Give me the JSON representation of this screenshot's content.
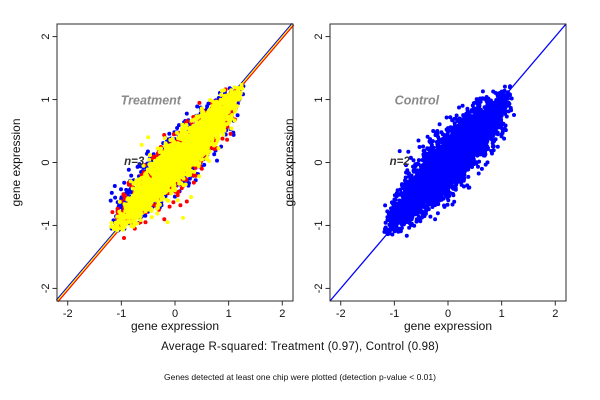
{
  "figure": {
    "background": "#ffffff",
    "caption_rsq": "Average R-squared: Treatment (0.97), Control (0.98)",
    "caption_note": "Genes detected at least one chip were plotted (detection p-value < 0.01)"
  },
  "chart_data": [
    {
      "id": "treatment",
      "type": "scatter",
      "panel_title": "Treatment",
      "n_label": "n=3",
      "n_chips": 3,
      "avg_r_squared": 0.97,
      "xlabel": "gene expression",
      "ylabel": "gene expression",
      "xlim": [
        -2.2,
        2.2
      ],
      "ylim": [
        -2.2,
        2.2
      ],
      "xticks": [
        -2,
        -1,
        0,
        1,
        2
      ],
      "yticks": [
        -2,
        -1,
        0,
        1,
        2
      ],
      "grid": false,
      "seed": 42,
      "panel_title_pos": [
        -0.45,
        0.92
      ],
      "n_label_pos": [
        -0.76,
        -0.04
      ],
      "identity_line": [
        {
          "name": "chip-1-line",
          "color": "#0000ff",
          "offset": -0.75
        },
        {
          "name": "chip-2-line",
          "color": "#ff0000",
          "offset": 0.75
        },
        {
          "name": "chip-3-line",
          "color": "#ffee00",
          "offset": 0
        }
      ],
      "series": [
        {
          "name": "chip-blue",
          "color": "#0000ff",
          "n": 1500,
          "t_range": [
            -1.15,
            1.25
          ],
          "half_width": 0.34,
          "skew": 0.04,
          "lobes": [
            {
              "n": 170,
              "t_range": [
                -0.92,
                0.08
              ],
              "base": 0.03,
              "sigma": 0.18,
              "side": 1
            },
            {
              "n": 45,
              "t_range": [
                -0.55,
                0.35
              ],
              "base": 0.04,
              "sigma": 0.12,
              "side": -1
            }
          ],
          "extra": [
            [
              -1.18,
              -1.05
            ],
            [
              1.02,
              1.18
            ],
            [
              0.52,
              0.07
            ],
            [
              -0.15,
              0.35
            ],
            [
              -0.43,
              -0.6
            ]
          ]
        },
        {
          "name": "chip-red",
          "color": "#ff0000",
          "n": 900,
          "t_range": [
            -1.13,
            1.22
          ],
          "half_width": 0.3,
          "skew": 0.04,
          "lobes": [],
          "extra": [
            [
              -0.95,
              -1.2
            ],
            [
              -0.75,
              -1.05
            ],
            [
              -0.55,
              -0.95
            ],
            [
              -0.3,
              -0.75
            ],
            [
              -0.1,
              -0.7
            ],
            [
              0.1,
              -0.68
            ],
            [
              0.22,
              -0.62
            ],
            [
              -0.2,
              -0.9
            ],
            [
              0.05,
              -0.52
            ],
            [
              0.35,
              -0.32
            ],
            [
              0.5,
              -0.1
            ],
            [
              0.45,
              0.05
            ],
            [
              0.6,
              0.3
            ],
            [
              1.25,
              1.2
            ],
            [
              -1.0,
              -0.62
            ],
            [
              -0.8,
              -0.38
            ],
            [
              0.15,
              0.5
            ],
            [
              0.55,
              0.75
            ],
            [
              0.42,
              0.6
            ]
          ]
        },
        {
          "name": "chip-yellow",
          "color": "#ffff00",
          "n": 2600,
          "t_range": [
            -1.15,
            1.25
          ],
          "half_width": 0.27,
          "skew": 0.04,
          "lobes": [],
          "extra": [
            [
              -0.33,
              -0.81
            ],
            [
              -0.14,
              -0.95
            ],
            [
              0.15,
              -0.88
            ],
            [
              0.3,
              -0.55
            ],
            [
              0.45,
              -0.22
            ],
            [
              -0.5,
              0.4
            ],
            [
              0.2,
              -0.35
            ],
            [
              1.22,
              1.18
            ],
            [
              0.05,
              -0.6
            ],
            [
              -0.62,
              0.28
            ]
          ]
        }
      ]
    },
    {
      "id": "control",
      "type": "scatter",
      "panel_title": "Control",
      "n_label": "n=2",
      "n_chips": 2,
      "avg_r_squared": 0.98,
      "xlabel": "gene expression",
      "ylabel": "gene expression",
      "xlim": [
        -2.2,
        2.2
      ],
      "ylim": [
        -2.2,
        2.2
      ],
      "xticks": [
        -2,
        -1,
        0,
        1,
        2
      ],
      "yticks": [
        -2,
        -1,
        0,
        1,
        2
      ],
      "grid": false,
      "seed": 7,
      "panel_title_pos": [
        -0.58,
        0.92
      ],
      "n_label_pos": [
        -0.9,
        -0.04
      ],
      "identity_line": [
        {
          "name": "chip-line",
          "color": "#0000ff",
          "offset": 0
        }
      ],
      "series": [
        {
          "name": "chips-blue",
          "color": "#0000ff",
          "n": 3800,
          "t_range": [
            -1.15,
            1.2
          ],
          "half_width": 0.36,
          "skew": 0.02,
          "lobes": [
            {
              "n": 70,
              "t_range": [
                -0.9,
                -0.05
              ],
              "base": 0.03,
              "sigma": 0.16,
              "side": 1
            }
          ],
          "extra": [
            [
              -0.38,
              0.41
            ],
            [
              -0.74,
              0.17
            ],
            [
              -0.86,
              -0.36
            ],
            [
              -0.71,
              -0.52
            ],
            [
              -0.55,
              0.35
            ],
            [
              -0.95,
              -0.7
            ],
            [
              0.72,
              1.04
            ],
            [
              -0.43,
              -0.72
            ],
            [
              -0.2,
              0.5
            ],
            [
              -1.02,
              -0.82
            ],
            [
              0.5,
              0.95
            ],
            [
              -0.62,
              -0.05
            ],
            [
              -0.3,
              0.28
            ],
            [
              -0.5,
              -0.15
            ]
          ]
        }
      ]
    }
  ]
}
